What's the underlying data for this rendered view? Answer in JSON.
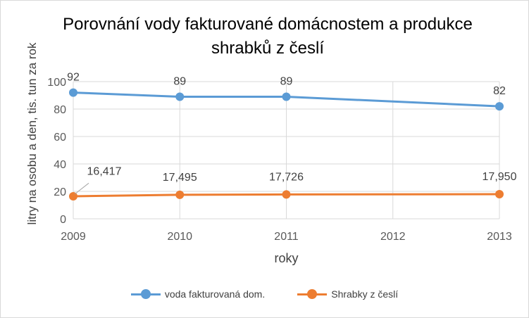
{
  "chart_data": {
    "type": "line",
    "title": "Porovnání vody fakturované domácnostem a produkce shrabků z česlí",
    "xlabel": "roky",
    "ylabel": "litry na osobu a den, tis. tun za rok",
    "categories": [
      "2009",
      "2010",
      "2011",
      "2012",
      "2013"
    ],
    "yticks": [
      "0",
      "20",
      "40",
      "60",
      "80",
      "100"
    ],
    "ylim": [
      0,
      100
    ],
    "grid": true,
    "legend_position": "bottom",
    "series": [
      {
        "name": "voda fakturovaná dom.",
        "color": "#5b9bd5",
        "points": [
          {
            "x": "2009",
            "y": 92,
            "label": "92"
          },
          {
            "x": "2010",
            "y": 89,
            "label": "89"
          },
          {
            "x": "2011",
            "y": 89,
            "label": "89"
          },
          {
            "x": "2013",
            "y": 82,
            "label": "82"
          }
        ]
      },
      {
        "name": "Shrabky z česlí",
        "color": "#ed7d31",
        "points": [
          {
            "x": "2009",
            "y": 16.417,
            "label": "16,417"
          },
          {
            "x": "2010",
            "y": 17.495,
            "label": "17,495"
          },
          {
            "x": "2011",
            "y": 17.726,
            "label": "17,726"
          },
          {
            "x": "2013",
            "y": 17.95,
            "label": "17,950"
          }
        ]
      }
    ]
  }
}
